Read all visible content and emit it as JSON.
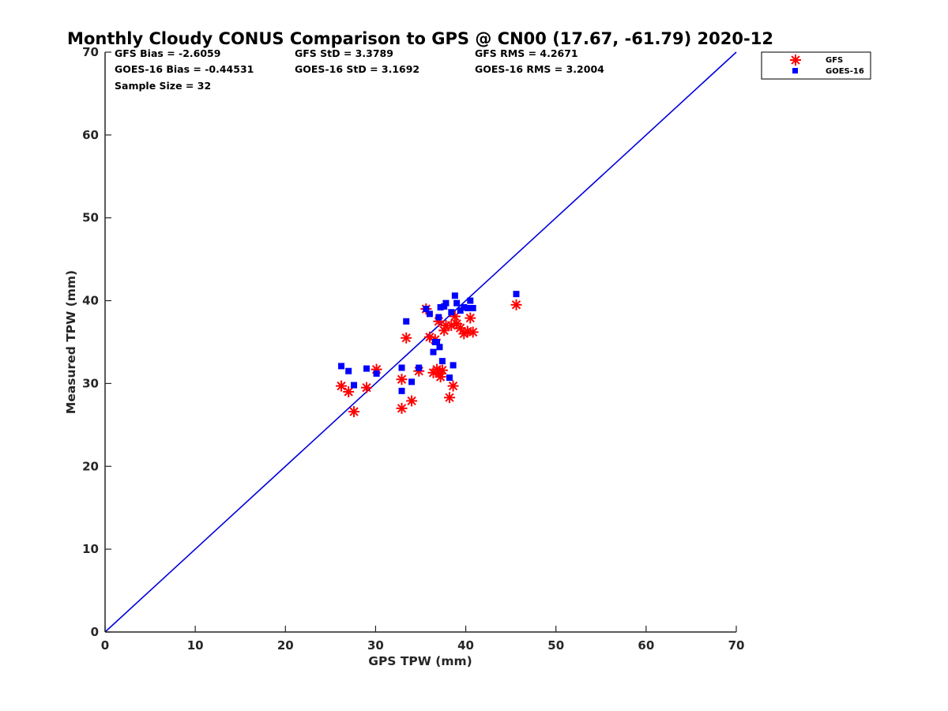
{
  "chart_data": {
    "type": "scatter",
    "title": "Monthly Cloudy CONUS Comparison to GPS @ CN00 (17.67, -61.79) 2020-12",
    "xlabel": "GPS TPW (mm)",
    "ylabel": "Measured TPW (mm)",
    "xlim": [
      0,
      70
    ],
    "ylim": [
      0,
      70
    ],
    "xticks": [
      "0",
      "10",
      "20",
      "30",
      "40",
      "50",
      "60",
      "70"
    ],
    "yticks": [
      "0",
      "10",
      "20",
      "30",
      "40",
      "50",
      "60",
      "70"
    ],
    "grid": false,
    "legend_position": "outside-top-right",
    "stats": {
      "gfs_bias": "GFS Bias = -2.6059",
      "gfs_std": "GFS StD = 3.3789",
      "gfs_rms": "GFS RMS = 4.2671",
      "goes_bias": "GOES-16 Bias = -0.44531",
      "goes_std": "GOES-16 StD = 3.1692",
      "goes_rms": "GOES-16 RMS = 3.2004",
      "sample_size": "Sample Size = 32"
    },
    "reference_line": {
      "x": [
        0,
        70
      ],
      "y": [
        0,
        70
      ],
      "color": "#0000dd"
    },
    "series": [
      {
        "name": "GFS",
        "marker": "asterisk",
        "color": "#ff0000",
        "points": [
          [
            26.2,
            29.7
          ],
          [
            27.0,
            29.0
          ],
          [
            27.6,
            26.6
          ],
          [
            29.0,
            29.5
          ],
          [
            30.1,
            31.7
          ],
          [
            32.9,
            27.0
          ],
          [
            32.9,
            30.5
          ],
          [
            33.4,
            35.5
          ],
          [
            34.0,
            27.9
          ],
          [
            34.8,
            31.5
          ],
          [
            35.6,
            39.0
          ],
          [
            36.0,
            35.6
          ],
          [
            36.4,
            31.3
          ],
          [
            36.6,
            35.3
          ],
          [
            36.8,
            31.7
          ],
          [
            37.0,
            37.5
          ],
          [
            37.1,
            31.2
          ],
          [
            37.2,
            30.8
          ],
          [
            37.4,
            31.6
          ],
          [
            37.6,
            36.4
          ],
          [
            37.8,
            37.0
          ],
          [
            38.2,
            28.3
          ],
          [
            38.4,
            37.0
          ],
          [
            38.6,
            29.7
          ],
          [
            38.8,
            38.1
          ],
          [
            39.0,
            37.2
          ],
          [
            39.4,
            36.7
          ],
          [
            39.8,
            36.0
          ],
          [
            40.2,
            36.3
          ],
          [
            40.5,
            37.9
          ],
          [
            40.8,
            36.2
          ],
          [
            45.6,
            39.5
          ]
        ]
      },
      {
        "name": "GOES-16",
        "marker": "square",
        "color": "#0000ff",
        "points": [
          [
            26.2,
            32.1
          ],
          [
            27.0,
            31.5
          ],
          [
            27.6,
            29.8
          ],
          [
            29.0,
            31.8
          ],
          [
            30.1,
            31.2
          ],
          [
            32.9,
            31.9
          ],
          [
            32.9,
            29.1
          ],
          [
            33.4,
            37.5
          ],
          [
            34.0,
            30.2
          ],
          [
            34.8,
            31.9
          ],
          [
            35.6,
            39.0
          ],
          [
            36.0,
            38.4
          ],
          [
            36.4,
            33.8
          ],
          [
            36.6,
            35.0
          ],
          [
            36.8,
            35.0
          ],
          [
            37.0,
            38.0
          ],
          [
            37.1,
            34.4
          ],
          [
            37.2,
            39.2
          ],
          [
            37.4,
            32.7
          ],
          [
            37.6,
            39.3
          ],
          [
            37.8,
            39.7
          ],
          [
            38.2,
            30.7
          ],
          [
            38.4,
            38.6
          ],
          [
            38.6,
            32.2
          ],
          [
            38.8,
            40.6
          ],
          [
            39.0,
            39.7
          ],
          [
            39.4,
            38.8
          ],
          [
            39.8,
            39.2
          ],
          [
            40.2,
            39.1
          ],
          [
            40.5,
            40.0
          ],
          [
            40.8,
            39.1
          ],
          [
            45.6,
            40.8
          ]
        ]
      }
    ]
  }
}
